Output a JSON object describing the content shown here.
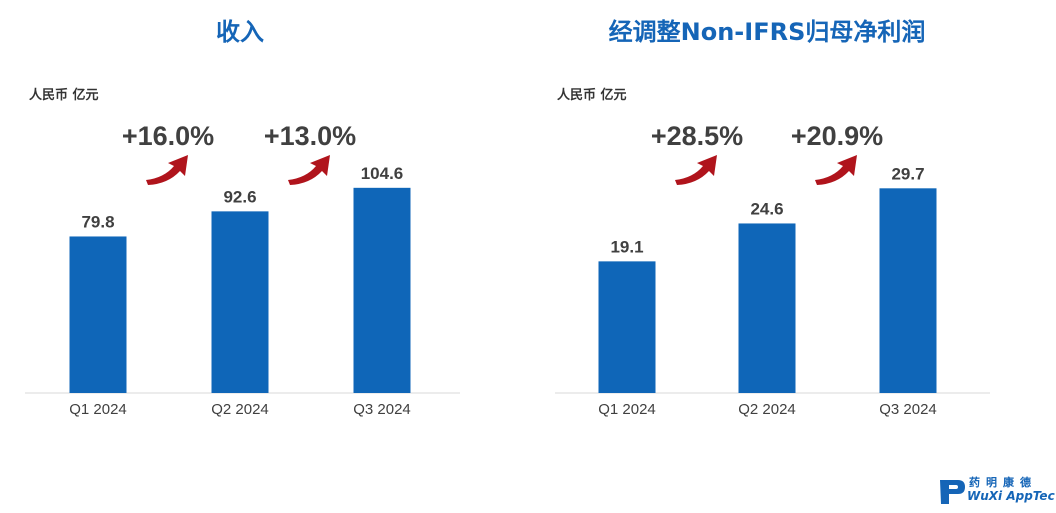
{
  "brand": {
    "logo_text_cn": "药明康德",
    "logo_text_en": "WuXi AppTec",
    "colors": {
      "bar": "#0f66b8",
      "title": "#1565b7",
      "arrow": "#b0141c"
    }
  },
  "chart_data": [
    {
      "type": "bar",
      "title": "收入",
      "unit": "人民币 亿元",
      "categories": [
        "Q1 2024",
        "Q2 2024",
        "Q3 2024"
      ],
      "values": [
        79.8,
        92.6,
        104.6
      ],
      "value_labels": [
        "79.8",
        "92.6",
        "104.6"
      ],
      "growth": [
        "+16.0%",
        "+13.0%"
      ],
      "ylim": [
        0,
        130
      ],
      "grid": false
    },
    {
      "type": "bar",
      "title": "经调整Non-IFRS归母净利润",
      "unit": "人民币 亿元",
      "categories": [
        "Q1 2024",
        "Q2 2024",
        "Q3 2024"
      ],
      "values": [
        19.1,
        24.6,
        29.7
      ],
      "value_labels": [
        "19.1",
        "24.6",
        "29.7"
      ],
      "growth": [
        "+28.5%",
        "+20.9%"
      ],
      "ylim": [
        0,
        37
      ],
      "grid": false
    }
  ]
}
